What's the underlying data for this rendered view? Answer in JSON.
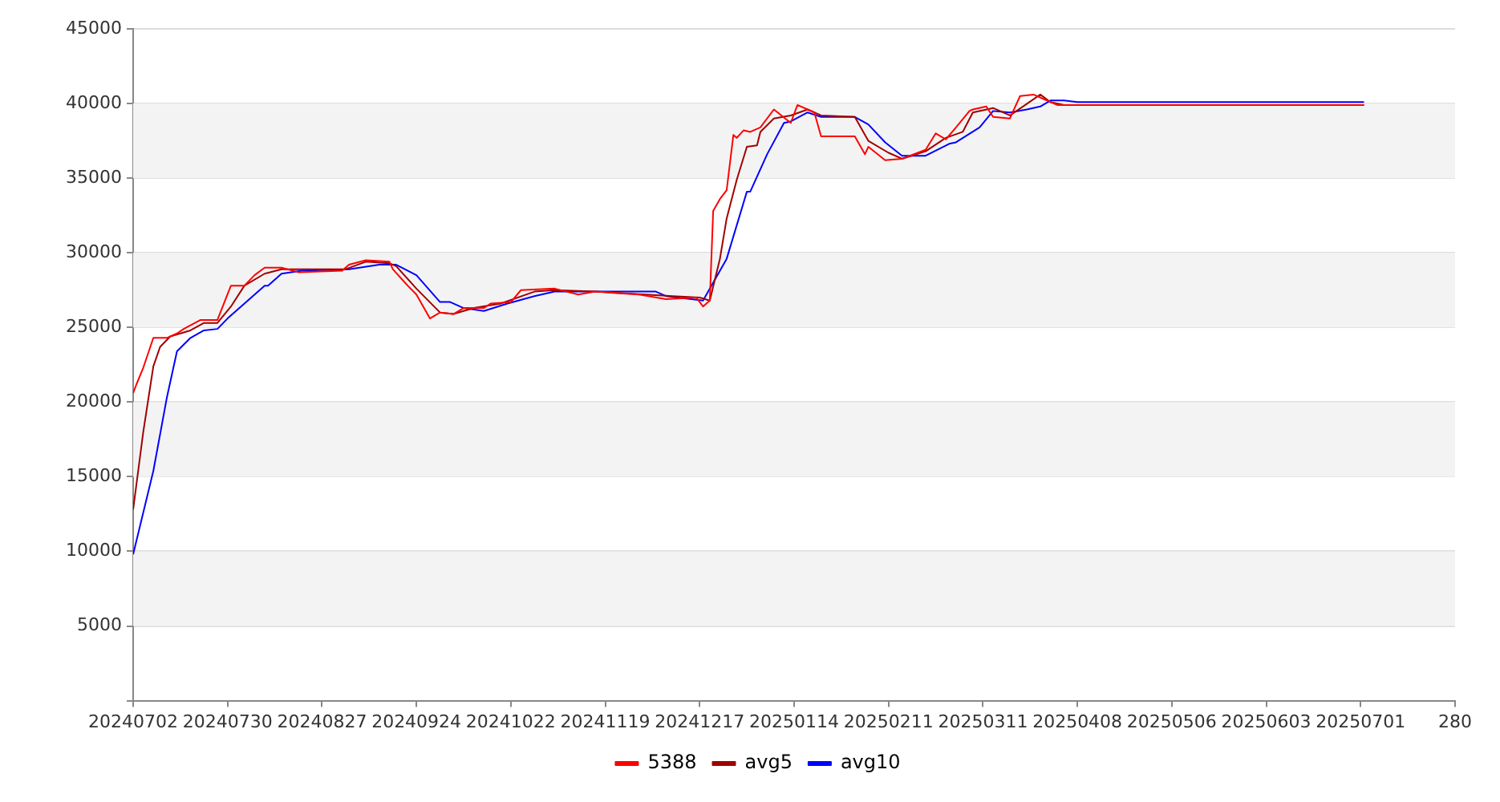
{
  "chart_data": {
    "type": "line",
    "marker": "none",
    "line_style": "solid",
    "grid": "y",
    "legend": "bottom",
    "xlim": [
      "2024-07-02",
      "2025-07-29"
    ],
    "ylim": [
      0,
      45000
    ],
    "xticks": [
      {
        "value": "2024-07-02",
        "label": "20240702"
      },
      {
        "value": "2024-07-30",
        "label": "20240730"
      },
      {
        "value": "2024-08-27",
        "label": "20240827"
      },
      {
        "value": "2024-09-24",
        "label": "20240924"
      },
      {
        "value": "2024-10-22",
        "label": "20241022"
      },
      {
        "value": "2024-11-19",
        "label": "20241119"
      },
      {
        "value": "2024-12-17",
        "label": "20241217"
      },
      {
        "value": "2025-01-14",
        "label": "20250114"
      },
      {
        "value": "2025-02-11",
        "label": "20250211"
      },
      {
        "value": "2025-03-11",
        "label": "20250311"
      },
      {
        "value": "2025-04-08",
        "label": "20250408"
      },
      {
        "value": "2025-05-06",
        "label": "20250506"
      },
      {
        "value": "2025-06-03",
        "label": "20250603"
      },
      {
        "value": "2025-07-01",
        "label": "20250701"
      },
      {
        "value": "2025-07-29",
        "label": "280"
      }
    ],
    "bands": [
      {
        "axis": "y",
        "from": 5000,
        "to": 10000,
        "color": "#f3f3f3"
      },
      {
        "axis": "y",
        "from": 15000,
        "to": 20000,
        "color": "#f3f3f3"
      },
      {
        "axis": "y",
        "from": 25000,
        "to": 30000,
        "color": "#f3f3f3"
      },
      {
        "axis": "y",
        "from": 35000,
        "to": 40000,
        "color": "#f3f3f3"
      }
    ],
    "yticks": [
      {
        "value": 0,
        "label": null
      },
      5000,
      10000,
      15000,
      20000,
      25000,
      30000,
      35000,
      40000,
      45000
    ],
    "series": [
      {
        "name": "5388",
        "color": "#ff0000",
        "x": [
          "2024-07-02",
          "2024-07-03",
          "2024-07-05",
          "2024-07-08",
          "2024-07-12",
          "2024-07-15",
          "2024-07-17",
          "2024-07-22",
          "2024-07-27",
          "2024-07-31",
          "2024-08-04",
          "2024-08-07",
          "2024-08-10",
          "2024-08-15",
          "2024-08-20",
          "2024-09-02",
          "2024-09-04",
          "2024-09-09",
          "2024-09-16",
          "2024-09-17",
          "2024-09-21",
          "2024-09-24",
          "2024-09-28",
          "2024-10-01",
          "2024-10-05",
          "2024-10-08",
          "2024-10-14",
          "2024-10-16",
          "2024-10-22",
          "2024-10-25",
          "2024-11-04",
          "2024-11-11",
          "2024-11-16",
          "2024-11-29",
          "2024-12-07",
          "2024-12-16",
          "2024-12-18",
          "2024-12-20",
          "2024-12-21",
          "2024-12-23",
          "2024-12-25",
          "2024-12-27",
          "2024-12-28",
          "2024-12-30",
          "2025-01-01",
          "2025-01-04",
          "2025-01-08",
          "2025-01-13",
          "2025-01-15",
          "2025-01-18",
          "2025-01-20",
          "2025-01-22",
          "2025-02-01",
          "2025-02-04",
          "2025-02-05",
          "2025-02-10",
          "2025-02-15",
          "2025-02-22",
          "2025-02-25",
          "2025-02-28",
          "2025-03-03",
          "2025-03-07",
          "2025-03-08",
          "2025-03-12",
          "2025-03-14",
          "2025-03-19",
          "2025-03-22",
          "2025-03-26",
          "2025-03-29",
          "2025-04-02",
          "2025-07-02"
        ],
        "values": [
          20600,
          21200,
          22300,
          24300,
          24300,
          24600,
          24900,
          25500,
          25500,
          27800,
          27800,
          28500,
          29000,
          29000,
          28700,
          28800,
          29200,
          29500,
          29400,
          28900,
          27900,
          27200,
          25600,
          26000,
          25900,
          26300,
          26300,
          26600,
          26700,
          27500,
          27600,
          27200,
          27400,
          27200,
          26900,
          27000,
          26400,
          26800,
          32800,
          33600,
          34200,
          37900,
          37700,
          38200,
          38100,
          38400,
          39600,
          38700,
          39900,
          39600,
          39400,
          37800,
          37800,
          36600,
          37100,
          36200,
          36300,
          36900,
          38000,
          37600,
          38400,
          39500,
          39600,
          39800,
          39100,
          39000,
          40500,
          40600,
          40300,
          39900,
          39900
        ]
      },
      {
        "name": "avg5",
        "color": "#a00000",
        "x": [
          "2024-07-02",
          "2024-07-05",
          "2024-07-08",
          "2024-07-10",
          "2024-07-13",
          "2024-07-19",
          "2024-07-23",
          "2024-07-27",
          "2024-07-31",
          "2024-08-04",
          "2024-08-10",
          "2024-08-15",
          "2024-09-03",
          "2024-09-09",
          "2024-09-16",
          "2024-09-18",
          "2024-09-24",
          "2024-10-01",
          "2024-10-05",
          "2024-10-11",
          "2024-10-19",
          "2024-10-29",
          "2024-11-04",
          "2024-11-16",
          "2024-12-09",
          "2024-12-17",
          "2024-12-20",
          "2024-12-23",
          "2024-12-25",
          "2024-12-28",
          "2024-12-31",
          "2025-01-03",
          "2025-01-04",
          "2025-01-08",
          "2025-01-13",
          "2025-01-18",
          "2025-01-22",
          "2025-02-01",
          "2025-02-05",
          "2025-02-11",
          "2025-02-15",
          "2025-02-22",
          "2025-02-28",
          "2025-03-05",
          "2025-03-08",
          "2025-03-14",
          "2025-03-19",
          "2025-03-28",
          "2025-03-31",
          "2025-04-04",
          "2025-07-02"
        ],
        "values": [
          12800,
          18000,
          22400,
          23700,
          24400,
          24800,
          25300,
          25300,
          26400,
          27800,
          28600,
          28900,
          28900,
          29400,
          29300,
          29100,
          27600,
          26000,
          25900,
          26300,
          26600,
          27400,
          27500,
          27400,
          27100,
          27000,
          26800,
          29600,
          32300,
          34900,
          37100,
          37200,
          38100,
          39000,
          39200,
          39600,
          39200,
          39100,
          37500,
          36700,
          36300,
          36800,
          37700,
          38100,
          39400,
          39700,
          39200,
          40600,
          40100,
          39900,
          39900
        ]
      },
      {
        "name": "avg10",
        "color": "#0000ff",
        "x": [
          "2024-07-02",
          "2024-07-08",
          "2024-07-12",
          "2024-07-15",
          "2024-07-19",
          "2024-07-23",
          "2024-07-27",
          "2024-07-30",
          "2024-08-04",
          "2024-08-10",
          "2024-08-11",
          "2024-08-15",
          "2024-08-21",
          "2024-09-04",
          "2024-09-13",
          "2024-09-18",
          "2024-09-24",
          "2024-10-01",
          "2024-10-04",
          "2024-10-08",
          "2024-10-14",
          "2024-10-21",
          "2024-10-29",
          "2024-11-04",
          "2024-12-04",
          "2024-12-07",
          "2024-12-18",
          "2024-12-25",
          "2024-12-31",
          "2025-01-01",
          "2025-01-06",
          "2025-01-11",
          "2025-01-13",
          "2025-01-18",
          "2025-01-22",
          "2025-02-01",
          "2025-02-05",
          "2025-02-10",
          "2025-02-15",
          "2025-02-22",
          "2025-03-01",
          "2025-03-03",
          "2025-03-10",
          "2025-03-14",
          "2025-03-19",
          "2025-03-24",
          "2025-03-28",
          "2025-03-31",
          "2025-04-04",
          "2025-04-08",
          "2025-07-02"
        ],
        "values": [
          9800,
          15400,
          20300,
          23400,
          24300,
          24800,
          24900,
          25600,
          26600,
          27800,
          27800,
          28600,
          28800,
          28900,
          29200,
          29200,
          28500,
          26700,
          26700,
          26300,
          26100,
          26600,
          27100,
          27400,
          27400,
          27100,
          26800,
          29600,
          34100,
          34100,
          36600,
          38700,
          38800,
          39400,
          39100,
          39100,
          38600,
          37400,
          36500,
          36500,
          37300,
          37400,
          38400,
          39500,
          39400,
          39600,
          39800,
          40200,
          40200,
          40100,
          40100
        ]
      }
    ]
  }
}
